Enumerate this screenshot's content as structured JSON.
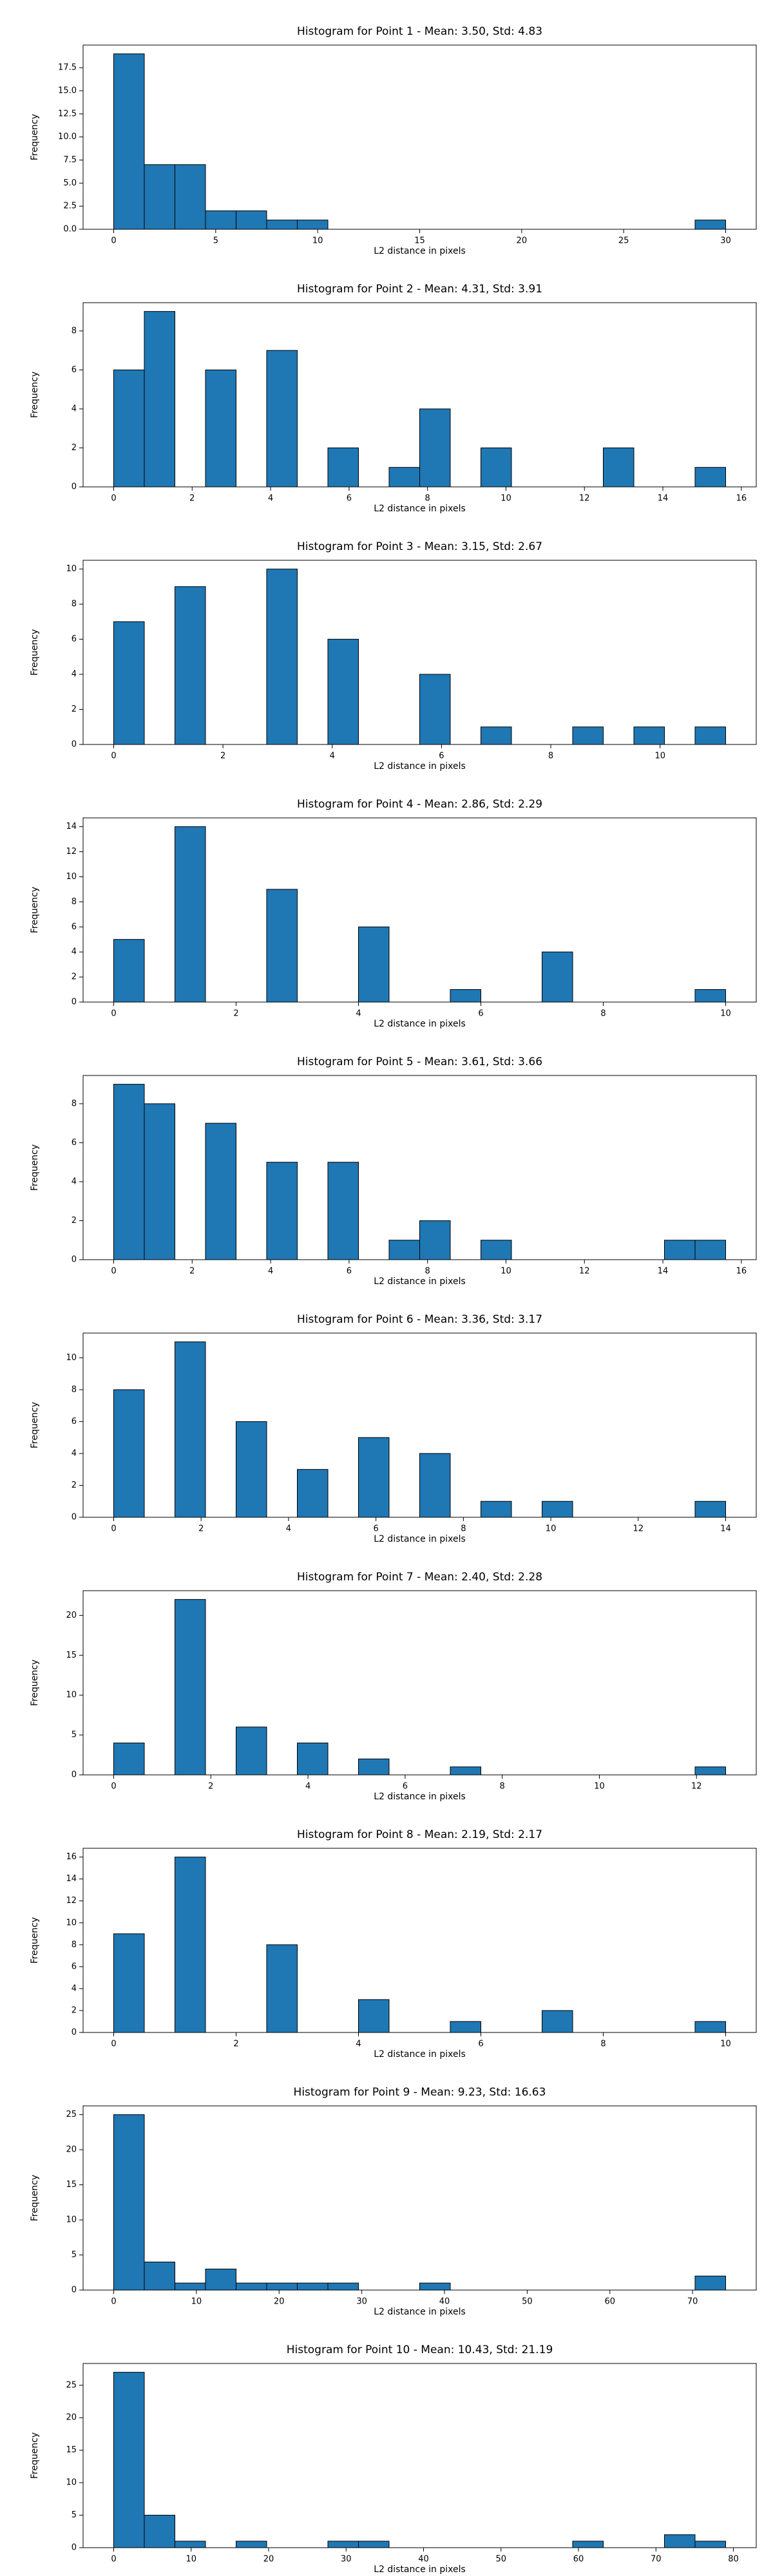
{
  "chart_data": [
    {
      "type": "histogram",
      "title": "Histogram for Point 1 - Mean: 3.50, Std: 4.83",
      "xlabel": "L2 distance in pixels",
      "ylabel": "Frequency",
      "color": "#1f77b4",
      "bins": [
        0,
        1.5,
        3,
        4.5,
        6,
        7.5,
        9,
        10.5,
        12,
        13.5,
        15,
        16.5,
        18,
        19.5,
        21,
        22.5,
        24,
        25.5,
        27,
        28.5,
        30
      ],
      "values": [
        19,
        7,
        7,
        2,
        2,
        1,
        1,
        0,
        0,
        0,
        0,
        0,
        0,
        0,
        0,
        0,
        0,
        0,
        0,
        1
      ],
      "xlim": [
        -1.5,
        31.5
      ],
      "ylim": [
        0,
        19.95
      ],
      "xticks": [
        0,
        5,
        10,
        15,
        20,
        25,
        30
      ],
      "yticks": [
        {
          "value": 0,
          "label": "0.0"
        },
        {
          "value": 2.5,
          "label": "2.5"
        },
        {
          "value": 5,
          "label": "5.0"
        },
        {
          "value": 7.5,
          "label": "7.5"
        },
        {
          "value": 10,
          "label": "10.0"
        },
        {
          "value": 12.5,
          "label": "12.5"
        },
        {
          "value": 15,
          "label": "15.0"
        },
        {
          "value": 17.5,
          "label": "17.5"
        }
      ]
    },
    {
      "type": "histogram",
      "title": "Histogram for Point 2 - Mean: 4.31, Std: 3.91",
      "xlabel": "L2 distance in pixels",
      "ylabel": "Frequency",
      "color": "#1f77b4",
      "bins": [
        0,
        0.78,
        1.56,
        2.34,
        3.12,
        3.9,
        4.68,
        5.46,
        6.24,
        7.02,
        7.8,
        8.58,
        9.36,
        10.14,
        10.92,
        11.7,
        12.48,
        13.26,
        14.04,
        14.82,
        15.6
      ],
      "values": [
        6,
        9,
        0,
        6,
        0,
        7,
        0,
        2,
        0,
        1,
        4,
        0,
        2,
        0,
        0,
        0,
        2,
        0,
        0,
        1
      ],
      "xlim": [
        -0.78,
        16.38
      ],
      "ylim": [
        0,
        9.45
      ],
      "xticks": [
        0,
        2,
        4,
        6,
        8,
        10,
        12,
        14,
        16
      ],
      "yticks": [
        0,
        2,
        4,
        6,
        8
      ]
    },
    {
      "type": "histogram",
      "title": "Histogram for Point 3 - Mean: 3.15, Std: 2.67",
      "xlabel": "L2 distance in pixels",
      "ylabel": "Frequency",
      "color": "#1f77b4",
      "bins": [
        0,
        0.56,
        1.12,
        1.68,
        2.24,
        2.8,
        3.36,
        3.92,
        4.48,
        5.04,
        5.6,
        6.16,
        6.72,
        7.28,
        7.84,
        8.4,
        8.96,
        9.52,
        10.08,
        10.64,
        11.2
      ],
      "values": [
        7,
        0,
        9,
        0,
        0,
        10,
        0,
        6,
        0,
        0,
        4,
        0,
        1,
        0,
        0,
        1,
        0,
        1,
        0,
        1
      ],
      "xlim": [
        -0.56,
        11.76
      ],
      "ylim": [
        0,
        10.5
      ],
      "xticks": [
        0,
        2,
        4,
        6,
        8,
        10
      ],
      "yticks": [
        0,
        2,
        4,
        6,
        8,
        10
      ]
    },
    {
      "type": "histogram",
      "title": "Histogram for Point 4 - Mean: 2.86, Std: 2.29",
      "xlabel": "L2 distance in pixels",
      "ylabel": "Frequency",
      "color": "#1f77b4",
      "bins": [
        0,
        0.5,
        1,
        1.5,
        2,
        2.5,
        3,
        3.5,
        4,
        4.5,
        5,
        5.5,
        6,
        6.5,
        7,
        7.5,
        8,
        8.5,
        9,
        9.5,
        10
      ],
      "values": [
        5,
        0,
        14,
        0,
        0,
        9,
        0,
        0,
        6,
        0,
        0,
        1,
        0,
        0,
        4,
        0,
        0,
        0,
        0,
        1
      ],
      "xlim": [
        -0.5,
        10.5
      ],
      "ylim": [
        0,
        14.7
      ],
      "xticks": [
        0,
        2,
        4,
        6,
        8,
        10
      ],
      "yticks": [
        0,
        2,
        4,
        6,
        8,
        10,
        12,
        14
      ]
    },
    {
      "type": "histogram",
      "title": "Histogram for Point 5 - Mean: 3.61, Std: 3.66",
      "xlabel": "L2 distance in pixels",
      "ylabel": "Frequency",
      "color": "#1f77b4",
      "bins": [
        0,
        0.78,
        1.56,
        2.34,
        3.12,
        3.9,
        4.68,
        5.46,
        6.24,
        7.02,
        7.8,
        8.58,
        9.36,
        10.14,
        10.92,
        11.7,
        12.48,
        13.26,
        14.04,
        14.82,
        15.6
      ],
      "values": [
        9,
        8,
        0,
        7,
        0,
        5,
        0,
        5,
        0,
        1,
        2,
        0,
        1,
        0,
        0,
        0,
        0,
        0,
        1,
        1
      ],
      "xlim": [
        -0.78,
        16.38
      ],
      "ylim": [
        0,
        9.45
      ],
      "xticks": [
        0,
        2,
        4,
        6,
        8,
        10,
        12,
        14,
        16
      ],
      "yticks": [
        0,
        2,
        4,
        6,
        8
      ]
    },
    {
      "type": "histogram",
      "title": "Histogram for Point 6 - Mean: 3.36, Std: 3.17",
      "xlabel": "L2 distance in pixels",
      "ylabel": "Frequency",
      "color": "#1f77b4",
      "bins": [
        0,
        0.7,
        1.4,
        2.1,
        2.8,
        3.5,
        4.2,
        4.9,
        5.6,
        6.3,
        7,
        7.7,
        8.4,
        9.1,
        9.8,
        10.5,
        11.2,
        11.9,
        12.6,
        13.3,
        14
      ],
      "values": [
        8,
        0,
        11,
        0,
        6,
        0,
        3,
        0,
        5,
        0,
        4,
        0,
        1,
        0,
        1,
        0,
        0,
        0,
        0,
        1
      ],
      "xlim": [
        -0.7,
        14.7
      ],
      "ylim": [
        0,
        11.55
      ],
      "xticks": [
        0,
        2,
        4,
        6,
        8,
        10,
        12,
        14
      ],
      "yticks": [
        0,
        2,
        4,
        6,
        8,
        10
      ]
    },
    {
      "type": "histogram",
      "title": "Histogram for Point 7 - Mean: 2.40, Std: 2.28",
      "xlabel": "L2 distance in pixels",
      "ylabel": "Frequency",
      "color": "#1f77b4",
      "bins": [
        0,
        0.63,
        1.26,
        1.89,
        2.52,
        3.15,
        3.78,
        4.41,
        5.04,
        5.67,
        6.3,
        6.93,
        7.56,
        8.19,
        8.82,
        9.45,
        10.08,
        10.71,
        11.34,
        11.97,
        12.6
      ],
      "values": [
        4,
        0,
        22,
        0,
        6,
        0,
        4,
        0,
        2,
        0,
        0,
        1,
        0,
        0,
        0,
        0,
        0,
        0,
        0,
        1
      ],
      "xlim": [
        -0.63,
        13.23
      ],
      "ylim": [
        0,
        23.1
      ],
      "xticks": [
        0,
        2,
        4,
        6,
        8,
        10,
        12
      ],
      "yticks": [
        0,
        5,
        10,
        15,
        20
      ]
    },
    {
      "type": "histogram",
      "title": "Histogram for Point 8 - Mean: 2.19, Std: 2.17",
      "xlabel": "L2 distance in pixels",
      "ylabel": "Frequency",
      "color": "#1f77b4",
      "bins": [
        0,
        0.5,
        1,
        1.5,
        2,
        2.5,
        3,
        3.5,
        4,
        4.5,
        5,
        5.5,
        6,
        6.5,
        7,
        7.5,
        8,
        8.5,
        9,
        9.5,
        10
      ],
      "values": [
        9,
        0,
        16,
        0,
        0,
        8,
        0,
        0,
        3,
        0,
        0,
        1,
        0,
        0,
        2,
        0,
        0,
        0,
        0,
        1
      ],
      "xlim": [
        -0.5,
        10.5
      ],
      "ylim": [
        0,
        16.8
      ],
      "xticks": [
        0,
        2,
        4,
        6,
        8,
        10
      ],
      "yticks": [
        0,
        2,
        4,
        6,
        8,
        10,
        12,
        14,
        16
      ]
    },
    {
      "type": "histogram",
      "title": "Histogram for Point 9 - Mean: 9.23, Std: 16.63",
      "xlabel": "L2 distance in pixels",
      "ylabel": "Frequency",
      "color": "#1f77b4",
      "bins": [
        0,
        3.7,
        7.4,
        11.1,
        14.8,
        18.5,
        22.2,
        25.9,
        29.6,
        33.3,
        37,
        40.7,
        44.4,
        48.1,
        51.8,
        55.5,
        59.2,
        62.9,
        66.6,
        70.3,
        74
      ],
      "values": [
        25,
        4,
        1,
        3,
        1,
        1,
        1,
        1,
        0,
        0,
        1,
        0,
        0,
        0,
        0,
        0,
        0,
        0,
        0,
        2
      ],
      "xlim": [
        -3.7,
        77.7
      ],
      "ylim": [
        0,
        26.25
      ],
      "xticks": [
        0,
        10,
        20,
        30,
        40,
        50,
        60,
        70
      ],
      "yticks": [
        0,
        5,
        10,
        15,
        20,
        25
      ]
    },
    {
      "type": "histogram",
      "title": "Histogram for Point 10 - Mean: 10.43, Std: 21.19",
      "xlabel": "L2 distance in pixels",
      "ylabel": "Frequency",
      "color": "#1f77b4",
      "bins": [
        0,
        3.95,
        7.9,
        11.85,
        15.8,
        19.75,
        23.7,
        27.65,
        31.6,
        35.55,
        39.5,
        43.45,
        47.4,
        51.35,
        55.3,
        59.25,
        63.2,
        67.15,
        71.1,
        75.05,
        79
      ],
      "values": [
        27,
        5,
        1,
        0,
        1,
        0,
        0,
        1,
        1,
        0,
        0,
        0,
        0,
        0,
        0,
        1,
        0,
        0,
        2,
        1
      ],
      "xlim": [
        -3.95,
        82.95
      ],
      "ylim": [
        0,
        28.35
      ],
      "xticks": [
        0,
        10,
        20,
        30,
        40,
        50,
        60,
        70,
        80
      ],
      "yticks": [
        0,
        5,
        10,
        15,
        20,
        25
      ]
    }
  ]
}
